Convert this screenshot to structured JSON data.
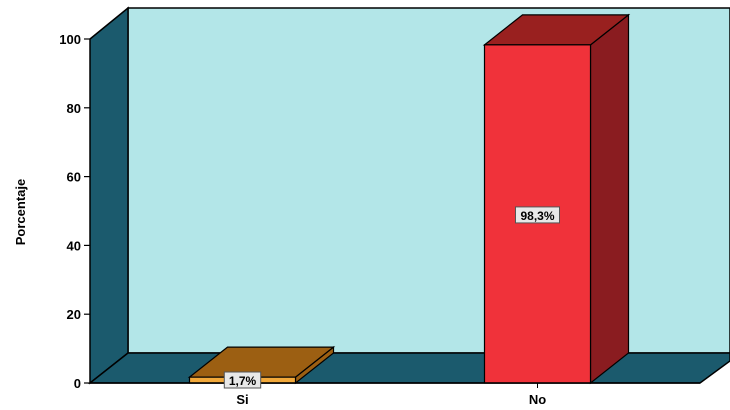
{
  "chart_data": {
    "type": "bar",
    "categories": [
      "Si",
      "No"
    ],
    "values": [
      1.7,
      98.3
    ],
    "data_labels": [
      "1,7%",
      "98,3%"
    ],
    "ylabel": "Porcentaje",
    "xlabel": "",
    "ylim": [
      0,
      100
    ],
    "yticks": [
      0,
      20,
      40,
      60,
      80,
      100
    ],
    "ytick_labels": [
      "0",
      "20",
      "40",
      "60",
      "80",
      "100"
    ],
    "grid": false,
    "style": "3d",
    "colors": {
      "back_wall": "#b3e6e8",
      "side_wall": "#1b5a6d",
      "floor": "#1b5a6d",
      "bar_front": [
        "#f2a93b",
        "#f0323a"
      ],
      "bar_top": [
        "#9c5f12",
        "#99201f"
      ],
      "bar_side": [
        "#9c5f12",
        "#8a1c20"
      ],
      "label_bg": "#e8e8e8"
    }
  }
}
